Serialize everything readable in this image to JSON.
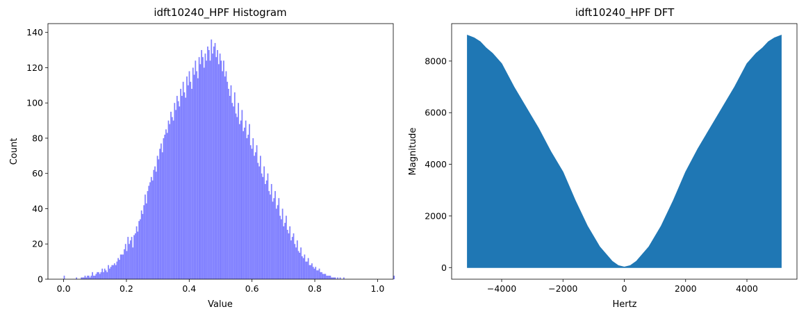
{
  "chart_data": [
    {
      "type": "bar",
      "subtype": "histogram",
      "title": "idft10240_HPF Histogram",
      "xlabel": "Value",
      "ylabel": "Count",
      "xlim": [
        -0.05,
        1.05
      ],
      "ylim": [
        0,
        145
      ],
      "xticks": [
        0.0,
        0.2,
        0.4,
        0.6,
        0.8,
        1.0
      ],
      "xtick_labels": [
        "0.0",
        "0.2",
        "0.4",
        "0.6",
        "0.8",
        "1.0"
      ],
      "yticks": [
        0,
        20,
        40,
        60,
        80,
        100,
        120,
        140
      ],
      "ytick_labels": [
        "0",
        "20",
        "40",
        "60",
        "80",
        "100",
        "120",
        "140"
      ],
      "bar_color": "#8080ff",
      "bins": 256,
      "bin_range": [
        0.0,
        1.0
      ],
      "grid": false,
      "counts": [
        2,
        0,
        0,
        0,
        0,
        0,
        0,
        0,
        0,
        0,
        1,
        0,
        0,
        0,
        1,
        1,
        1,
        2,
        1,
        2,
        2,
        1,
        2,
        4,
        2,
        2,
        3,
        4,
        4,
        3,
        4,
        6,
        4,
        6,
        5,
        4,
        8,
        6,
        7,
        8,
        8,
        9,
        8,
        10,
        12,
        11,
        14,
        14,
        14,
        17,
        20,
        16,
        24,
        20,
        22,
        24,
        18,
        25,
        26,
        30,
        27,
        33,
        34,
        39,
        37,
        42,
        48,
        43,
        50,
        53,
        55,
        58,
        56,
        62,
        64,
        61,
        70,
        68,
        74,
        77,
        72,
        80,
        82,
        85,
        83,
        90,
        88,
        95,
        92,
        90,
        100,
        96,
        104,
        101,
        98,
        108,
        104,
        112,
        106,
        103,
        115,
        110,
        118,
        112,
        108,
        120,
        116,
        124,
        118,
        114,
        126,
        122,
        130,
        126,
        120,
        128,
        124,
        132,
        130,
        124,
        136,
        128,
        132,
        134,
        126,
        130,
        122,
        128,
        124,
        118,
        124,
        115,
        118,
        112,
        108,
        104,
        110,
        100,
        98,
        106,
        94,
        92,
        100,
        88,
        90,
        96,
        84,
        86,
        90,
        80,
        82,
        88,
        76,
        74,
        80,
        70,
        72,
        76,
        66,
        64,
        70,
        60,
        58,
        64,
        54,
        56,
        60,
        50,
        48,
        54,
        44,
        46,
        50,
        40,
        42,
        46,
        36,
        34,
        40,
        30,
        32,
        36,
        28,
        26,
        30,
        22,
        24,
        26,
        20,
        18,
        22,
        16,
        15,
        18,
        13,
        12,
        14,
        10,
        10,
        12,
        8,
        8,
        9,
        7,
        6,
        7,
        5,
        5,
        6,
        4,
        4,
        3,
        3,
        3,
        2,
        2,
        2,
        2,
        1,
        1,
        1,
        1,
        0,
        1,
        0,
        1,
        0,
        0,
        1,
        0,
        0,
        0,
        0,
        0,
        0,
        0,
        0,
        0,
        0,
        0,
        0,
        0,
        0,
        0,
        0,
        0,
        0,
        0,
        0,
        0,
        0,
        0,
        0,
        0,
        0,
        0,
        0,
        0,
        0,
        0,
        0,
        0,
        0,
        0,
        0,
        0,
        0,
        0,
        0,
        2
      ]
    },
    {
      "type": "area",
      "title": "idft10240_HPF DFT",
      "xlabel": "Hertz",
      "ylabel": "Magnitude",
      "xlim": [
        -5632,
        5632
      ],
      "ylim": [
        -450,
        9450
      ],
      "xticks": [
        -4000,
        -2000,
        0,
        2000,
        4000
      ],
      "xtick_labels": [
        "−4000",
        "−2000",
        "0",
        "2000",
        "4000"
      ],
      "yticks": [
        0,
        2000,
        4000,
        6000,
        8000
      ],
      "ytick_labels": [
        "0",
        "2000",
        "4000",
        "6000",
        "8000"
      ],
      "line_color": "#1f77b4",
      "grid": false,
      "envelope": {
        "x": [
          -5120,
          -4900,
          -4700,
          -4500,
          -4300,
          -4000,
          -3600,
          -3200,
          -2800,
          -2400,
          -2000,
          -1600,
          -1200,
          -800,
          -400,
          -200,
          0,
          200,
          400,
          800,
          1200,
          1600,
          2000,
          2400,
          2800,
          3200,
          3600,
          4000,
          4300,
          4500,
          4700,
          4900,
          5120
        ],
        "upper": [
          9000,
          8900,
          8750,
          8500,
          8300,
          7900,
          7000,
          6200,
          5400,
          4500,
          3700,
          2600,
          1600,
          800,
          250,
          80,
          20,
          80,
          250,
          800,
          1600,
          2600,
          3700,
          4600,
          5400,
          6200,
          7000,
          7900,
          8300,
          8500,
          8750,
          8900,
          9000
        ],
        "lower": [
          0,
          0,
          0,
          0,
          0,
          0,
          0,
          0,
          0,
          0,
          0,
          0,
          0,
          0,
          0,
          0,
          0,
          0,
          0,
          0,
          0,
          0,
          0,
          0,
          0,
          0,
          0,
          0,
          0,
          0,
          0,
          0,
          0
        ]
      }
    }
  ]
}
